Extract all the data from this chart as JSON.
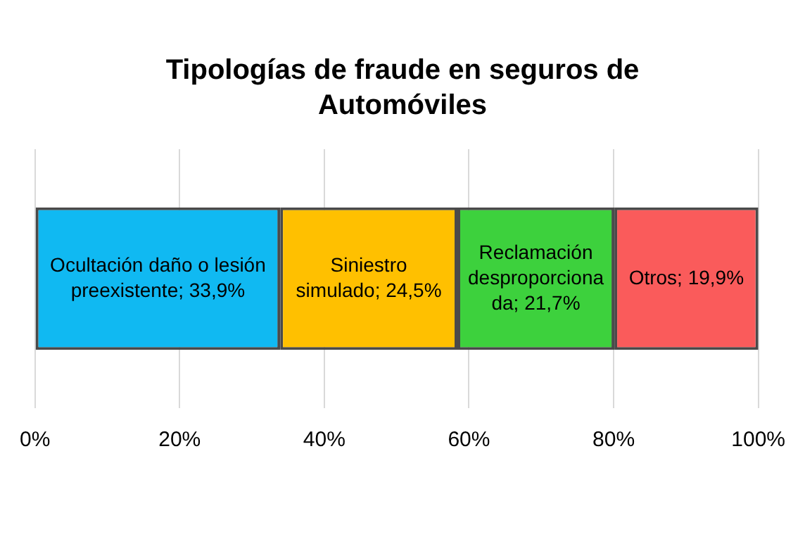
{
  "chart_data": {
    "type": "bar",
    "title": "Tipologías de fraude en seguros de Automóviles",
    "orientation": "horizontal",
    "stacked": true,
    "categories": [
      null
    ],
    "series": [
      {
        "color": "#10b9f2",
        "values": [
          33.9
        ],
        "value_labels": [
          "Ocultación daño o lesión preexistente; 33,9%"
        ]
      },
      {
        "color": "#ffc000",
        "values": [
          24.5
        ],
        "value_labels": [
          "Siniestro simulado; 24,5%"
        ]
      },
      {
        "color": "#3dd13d",
        "values": [
          21.7
        ],
        "value_labels": [
          "Reclamación desproporcionada; 21,7%"
        ]
      },
      {
        "color": "#fa5b5b",
        "values": [
          19.9
        ],
        "value_labels": [
          "Otros; 19,9%"
        ]
      }
    ],
    "xlim": [
      0,
      100
    ],
    "xticks": [
      {
        "value": 0,
        "label": "0%"
      },
      {
        "value": 20,
        "label": "20%"
      },
      {
        "value": 40,
        "label": "40%"
      },
      {
        "value": 60,
        "label": "60%"
      },
      {
        "value": 80,
        "label": "80%"
      },
      {
        "value": 100,
        "label": "100%"
      }
    ],
    "grid": "x",
    "legend": false
  }
}
